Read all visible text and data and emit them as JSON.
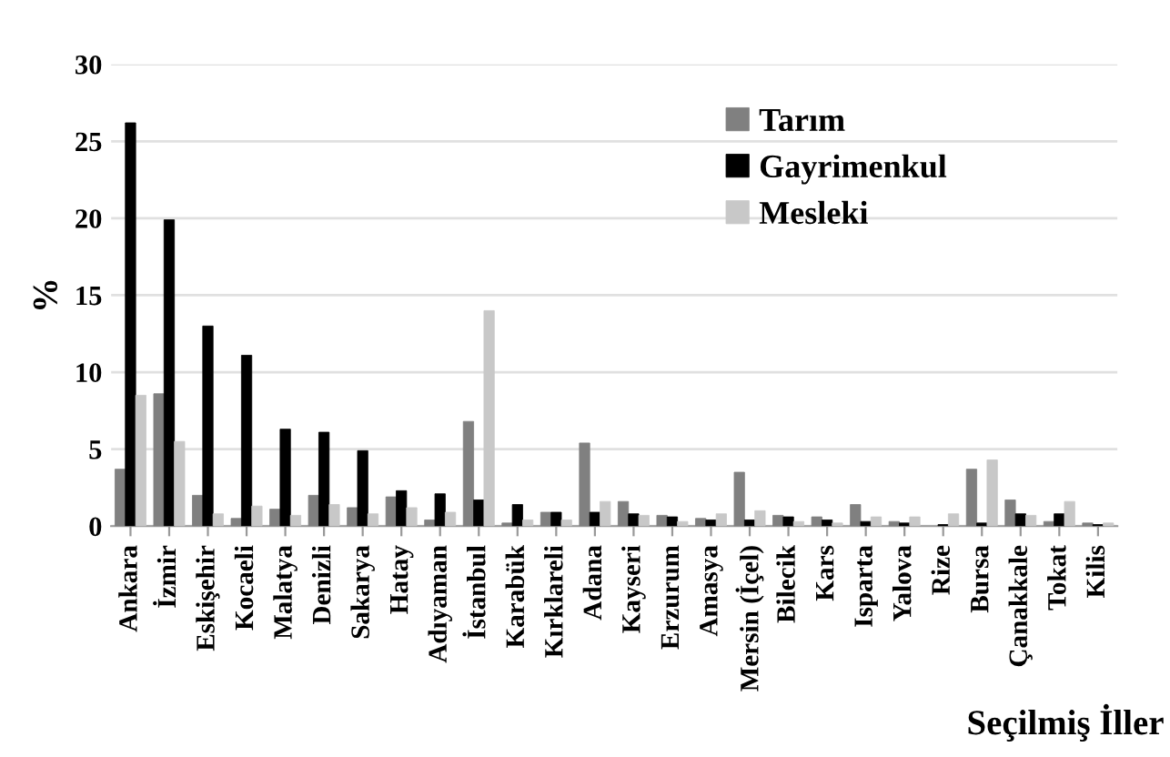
{
  "chart_data": {
    "type": "bar",
    "xlabel": "Seçilmiş İller",
    "ylabel": "%",
    "categories": [
      "Ankara",
      "İzmir",
      "Eskişehir",
      "Kocaeli",
      "Malatya",
      "Denizli",
      "Sakarya",
      "Hatay",
      "Adıyaman",
      "İstanbul",
      "Karabük",
      "Kırklareli",
      "Adana",
      "Kayseri",
      "Erzurum",
      "Amasya",
      "Mersin (İçel)",
      "Bilecik",
      "Kars",
      "Isparta",
      "Yalova",
      "Rize",
      "Bursa",
      "Çanakkale",
      "Tokat",
      "Kilis"
    ],
    "series": [
      {
        "name": "Tarım",
        "color": "#808080",
        "values": [
          3.7,
          8.6,
          2.0,
          0.5,
          1.1,
          2.0,
          1.2,
          1.9,
          0.4,
          6.8,
          0.2,
          0.9,
          5.4,
          1.6,
          0.7,
          0.5,
          3.5,
          0.7,
          0.6,
          1.4,
          0.3,
          null,
          3.7,
          1.7,
          0.3,
          0.2
        ]
      },
      {
        "name": "Gayrimenkul",
        "color": "#000000",
        "values": [
          26.2,
          19.9,
          13.0,
          11.1,
          6.3,
          6.1,
          4.9,
          2.3,
          2.1,
          1.7,
          1.4,
          0.9,
          0.9,
          0.8,
          0.6,
          0.4,
          0.4,
          0.6,
          0.4,
          0.3,
          0.2,
          0.1,
          0.2,
          0.8,
          0.8,
          0.1
        ]
      },
      {
        "name": "Mesleki",
        "color": "#c8c8c8",
        "values": [
          8.5,
          5.5,
          0.8,
          1.3,
          0.7,
          1.4,
          0.8,
          1.2,
          0.9,
          14.0,
          0.4,
          0.4,
          1.6,
          0.7,
          0.3,
          0.8,
          1.0,
          0.3,
          0.2,
          0.6,
          0.6,
          0.8,
          4.3,
          0.7,
          1.6,
          0.2
        ]
      }
    ],
    "ylim": [
      0,
      30
    ],
    "yticks": [
      0,
      5,
      10,
      15,
      20,
      25,
      30
    ],
    "grid": "y",
    "legend": "top right"
  }
}
